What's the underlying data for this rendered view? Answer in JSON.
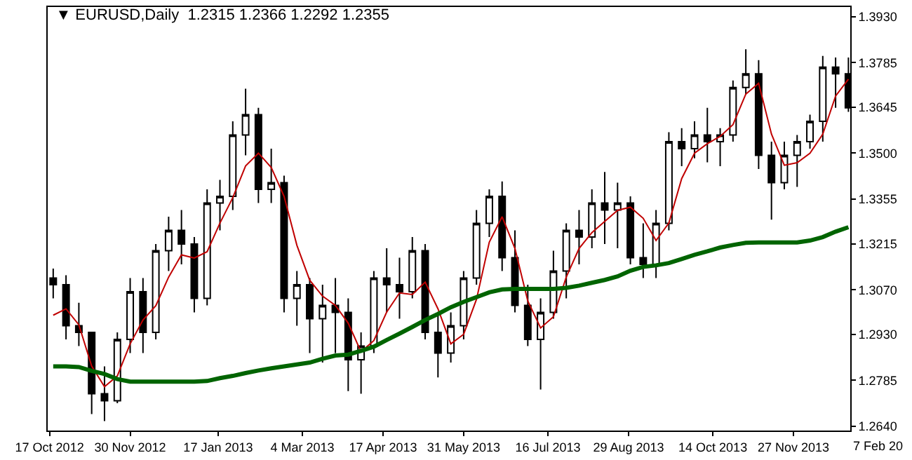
{
  "chart_data": {
    "type": "candlestick",
    "title": "▼ EURUSD,Daily  1.2315 1.2366 1.2292 1.2355",
    "color": "#000000",
    "x": [
      "2012-10-19",
      "2012-10-26",
      "2012-11-02",
      "2012-11-09",
      "2012-11-16",
      "2012-11-23",
      "2012-11-30",
      "2012-12-07",
      "2012-12-14",
      "2012-12-21",
      "2012-12-28",
      "2013-01-04",
      "2013-01-11",
      "2013-01-18",
      "2013-01-25",
      "2013-02-01",
      "2013-02-08",
      "2013-02-15",
      "2013-02-22",
      "2013-03-01",
      "2013-03-08",
      "2013-03-15",
      "2013-03-22",
      "2013-03-29",
      "2013-04-05",
      "2013-04-12",
      "2013-04-19",
      "2013-04-26",
      "2013-05-03",
      "2013-05-10",
      "2013-05-17",
      "2013-05-24",
      "2013-05-31",
      "2013-06-07",
      "2013-06-14",
      "2013-06-21",
      "2013-06-28",
      "2013-07-05",
      "2013-07-12",
      "2013-07-19",
      "2013-07-26",
      "2013-08-02",
      "2013-08-09",
      "2013-08-16",
      "2013-08-23",
      "2013-08-30",
      "2013-09-06",
      "2013-09-13",
      "2013-09-20",
      "2013-09-27",
      "2013-10-04",
      "2013-10-11",
      "2013-10-18",
      "2013-10-25",
      "2013-11-01",
      "2013-11-08",
      "2013-11-15",
      "2013-11-22",
      "2013-11-29",
      "2013-12-06",
      "2013-12-13",
      "2013-12-20",
      "2013-12-27"
    ],
    "ohlc": [
      [
        1.3107,
        1.3137,
        1.3043,
        1.3086
      ],
      [
        1.3086,
        1.3116,
        1.2914,
        1.2957
      ],
      [
        1.2957,
        1.3029,
        1.2893,
        1.2936
      ],
      [
        1.2936,
        1.2936,
        1.2679,
        1.2743
      ],
      [
        1.2743,
        1.2829,
        1.2657,
        1.2721
      ],
      [
        1.2721,
        1.2936,
        1.2713,
        1.2914
      ],
      [
        1.2914,
        1.3107,
        1.2871,
        1.3064
      ],
      [
        1.3064,
        1.3107,
        1.2871,
        1.2936
      ],
      [
        1.2936,
        1.3214,
        1.2914,
        1.3193
      ],
      [
        1.3193,
        1.33,
        1.3129,
        1.3257
      ],
      [
        1.3257,
        1.3321,
        1.315,
        1.3214
      ],
      [
        1.3214,
        1.3236,
        1.2999,
        1.3043
      ],
      [
        1.3043,
        1.3386,
        1.3021,
        1.3343
      ],
      [
        1.3343,
        1.3416,
        1.3257,
        1.3364
      ],
      [
        1.3364,
        1.36,
        1.3321,
        1.3557
      ],
      [
        1.3557,
        1.3703,
        1.3493,
        1.3621
      ],
      [
        1.3621,
        1.3643,
        1.3343,
        1.3386
      ],
      [
        1.3386,
        1.3514,
        1.3343,
        1.3407
      ],
      [
        1.3407,
        1.3429,
        1.2999,
        1.3043
      ],
      [
        1.3043,
        1.3129,
        1.2957,
        1.3086
      ],
      [
        1.3086,
        1.3107,
        1.2871,
        1.2979
      ],
      [
        1.2979,
        1.3086,
        1.2841,
        1.3021
      ],
      [
        1.3021,
        1.3107,
        1.2871,
        1.2999
      ],
      [
        1.2999,
        1.3043,
        1.2751,
        1.285
      ],
      [
        1.285,
        1.2936,
        1.2743,
        1.2893
      ],
      [
        1.2893,
        1.3129,
        1.2871,
        1.3107
      ],
      [
        1.3107,
        1.3201,
        1.2999,
        1.3086
      ],
      [
        1.3086,
        1.3171,
        1.2979,
        1.3064
      ],
      [
        1.3064,
        1.3236,
        1.3043,
        1.3193
      ],
      [
        1.3193,
        1.3214,
        1.2914,
        1.2936
      ],
      [
        1.2936,
        1.2999,
        1.2794,
        1.2871
      ],
      [
        1.2871,
        1.2999,
        1.2841,
        1.2957
      ],
      [
        1.2957,
        1.3129,
        1.2914,
        1.3107
      ],
      [
        1.3107,
        1.3321,
        1.3086,
        1.3279
      ],
      [
        1.3279,
        1.3386,
        1.3236,
        1.3364
      ],
      [
        1.3364,
        1.3411,
        1.3129,
        1.3171
      ],
      [
        1.3171,
        1.3257,
        1.2999,
        1.3021
      ],
      [
        1.3021,
        1.3086,
        1.2893,
        1.2914
      ],
      [
        1.2914,
        1.3043,
        1.2756,
        1.2999
      ],
      [
        1.2999,
        1.3193,
        1.2979,
        1.3129
      ],
      [
        1.3129,
        1.3279,
        1.3043,
        1.3257
      ],
      [
        1.3257,
        1.3321,
        1.315,
        1.3236
      ],
      [
        1.3236,
        1.3386,
        1.3201,
        1.3343
      ],
      [
        1.3343,
        1.3441,
        1.3214,
        1.3321
      ],
      [
        1.3321,
        1.3407,
        1.3201,
        1.3343
      ],
      [
        1.3343,
        1.3364,
        1.315,
        1.3171
      ],
      [
        1.3171,
        1.3279,
        1.3107,
        1.315
      ],
      [
        1.315,
        1.3321,
        1.3107,
        1.3279
      ],
      [
        1.3279,
        1.3566,
        1.3257,
        1.3536
      ],
      [
        1.3536,
        1.3579,
        1.3459,
        1.3514
      ],
      [
        1.3514,
        1.36,
        1.3484,
        1.3557
      ],
      [
        1.3557,
        1.3643,
        1.3471,
        1.3536
      ],
      [
        1.3536,
        1.3579,
        1.3459,
        1.3557
      ],
      [
        1.3557,
        1.3729,
        1.3536,
        1.3707
      ],
      [
        1.3707,
        1.3827,
        1.3686,
        1.375
      ],
      [
        1.375,
        1.3793,
        1.345,
        1.3493
      ],
      [
        1.3493,
        1.3536,
        1.3291,
        1.3407
      ],
      [
        1.3407,
        1.3536,
        1.3386,
        1.3493
      ],
      [
        1.3493,
        1.3557,
        1.3394,
        1.3536
      ],
      [
        1.3536,
        1.3621,
        1.3514,
        1.36
      ],
      [
        1.36,
        1.3806,
        1.3536,
        1.3771
      ],
      [
        1.3771,
        1.3801,
        1.3643,
        1.375
      ],
      [
        1.375,
        1.3801,
        1.363,
        1.3643
      ]
    ],
    "series": [
      {
        "type": "line",
        "color": "#c00000",
        "values": [
          1.299,
          1.301,
          1.296,
          1.283,
          1.2765,
          1.2799,
          1.29,
          1.2975,
          1.302,
          1.311,
          1.318,
          1.317,
          1.319,
          1.328,
          1.336,
          1.346,
          1.35,
          1.3455,
          1.3364,
          1.321,
          1.31,
          1.305,
          1.3021,
          1.2965,
          1.2875,
          1.291,
          1.3,
          1.306,
          1.3055,
          1.3094,
          1.301,
          1.29,
          1.293,
          1.304,
          1.322,
          1.33,
          1.32,
          1.3035,
          1.295,
          1.2985,
          1.311,
          1.32,
          1.325,
          1.3285,
          1.332,
          1.333,
          1.3295,
          1.3225,
          1.328,
          1.342,
          1.35,
          1.353,
          1.3553,
          1.359,
          1.3686,
          1.372,
          1.356,
          1.3462,
          1.347,
          1.35,
          1.356,
          1.368,
          1.3733
        ]
      },
      {
        "type": "line",
        "color": "#006400",
        "values": [
          1.2829,
          1.2829,
          1.2827,
          1.2815,
          1.2805,
          1.2789,
          1.2781,
          1.2781,
          1.2781,
          1.2781,
          1.2781,
          1.2781,
          1.2783,
          1.2792,
          1.2799,
          1.2808,
          1.2816,
          1.2823,
          1.2829,
          1.2835,
          1.2841,
          1.2853,
          1.2863,
          1.2866,
          1.2878,
          1.2891,
          1.2912,
          1.2932,
          1.2953,
          1.2975,
          1.2994,
          1.3015,
          1.3032,
          1.3047,
          1.3062,
          1.3071,
          1.3073,
          1.3073,
          1.3073,
          1.3073,
          1.3076,
          1.3083,
          1.3092,
          1.3101,
          1.3112,
          1.313,
          1.3142,
          1.3147,
          1.3154,
          1.3167,
          1.318,
          1.3191,
          1.3203,
          1.3211,
          1.3218,
          1.3219,
          1.3219,
          1.3219,
          1.3219,
          1.3225,
          1.3236,
          1.3253,
          1.3267
        ]
      }
    ],
    "xlim": [
      "2012-10-16",
      "2013-12-28"
    ],
    "xticks": [
      {
        "value": "2012-10-17",
        "label": "17 Oct 2012"
      },
      {
        "value": "2012-11-30",
        "label": "30 Nov 2012"
      },
      {
        "value": "2013-01-17",
        "label": "17 Jan 2013"
      },
      {
        "value": "2013-03-04",
        "label": "4 Mar 2013"
      },
      {
        "value": "2013-04-17",
        "label": "17 Apr 2013"
      },
      {
        "value": "2013-05-31",
        "label": "31 May 2013"
      },
      {
        "value": "2013-07-16",
        "label": "16 Jul 2013"
      },
      {
        "value": "2013-08-29",
        "label": "29 Aug 2013"
      },
      {
        "value": "2013-10-14",
        "label": "14 Oct 2013"
      },
      {
        "value": "2013-11-27",
        "label": "27 Nov 2013"
      }
    ],
    "ylim": [
      1.2627,
      1.396
    ],
    "yticks": [
      {
        "value": 1.264,
        "label": "1.2640"
      },
      {
        "value": 1.2785,
        "label": "1.2785"
      },
      {
        "value": 1.293,
        "label": "1.2930"
      },
      {
        "value": 1.307,
        "label": "1.3070"
      },
      {
        "value": 1.3215,
        "label": "1.3215"
      },
      {
        "value": 1.3355,
        "label": "1.3355"
      },
      {
        "value": 1.35,
        "label": "1.3500"
      },
      {
        "value": 1.3645,
        "label": "1.3645"
      },
      {
        "value": 1.3785,
        "label": "1.3785"
      },
      {
        "value": 1.393,
        "label": "1.3930"
      }
    ],
    "annotations": [
      "7 Feb 20"
    ]
  }
}
